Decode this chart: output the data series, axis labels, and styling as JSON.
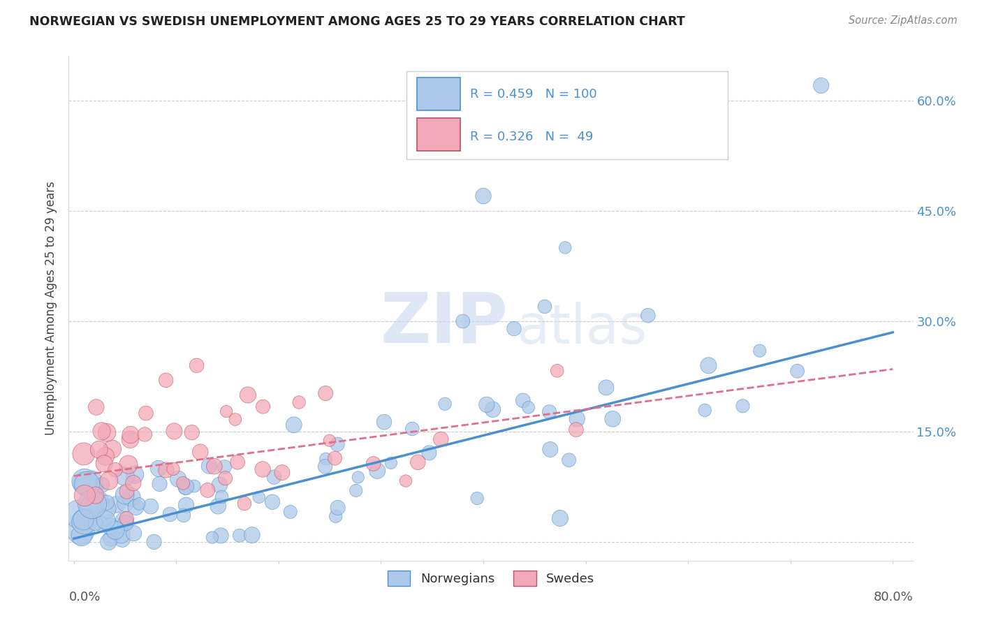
{
  "title": "NORWEGIAN VS SWEDISH UNEMPLOYMENT AMONG AGES 25 TO 29 YEARS CORRELATION CHART",
  "source": "Source: ZipAtlas.com",
  "ylabel": "Unemployment Among Ages 25 to 29 years",
  "norwegian_R": 0.459,
  "norwegian_N": 100,
  "swedish_R": 0.326,
  "swedish_N": 49,
  "norwegian_color": "#adc8e8",
  "swedish_color": "#f2a8b8",
  "norwegian_line_color": "#4a90d0",
  "swedish_line_color": "#e07088",
  "watermark_zip": "ZIP",
  "watermark_atlas": "atlas",
  "legend_norwegian_label": "Norwegians",
  "legend_swedish_label": "Swedes",
  "nor_line_x0": 0.0,
  "nor_line_y0": 0.005,
  "nor_line_x1": 0.8,
  "nor_line_y1": 0.285,
  "swe_line_x0": 0.0,
  "swe_line_y0": 0.09,
  "swe_line_x1": 0.8,
  "swe_line_y1": 0.235,
  "xlim_min": -0.005,
  "xlim_max": 0.82,
  "ylim_min": -0.025,
  "ylim_max": 0.66,
  "ytick_vals": [
    0.0,
    0.15,
    0.3,
    0.45,
    0.6
  ],
  "ytick_labels": [
    "",
    "15.0%",
    "30.0%",
    "45.0%",
    "60.0%"
  ]
}
